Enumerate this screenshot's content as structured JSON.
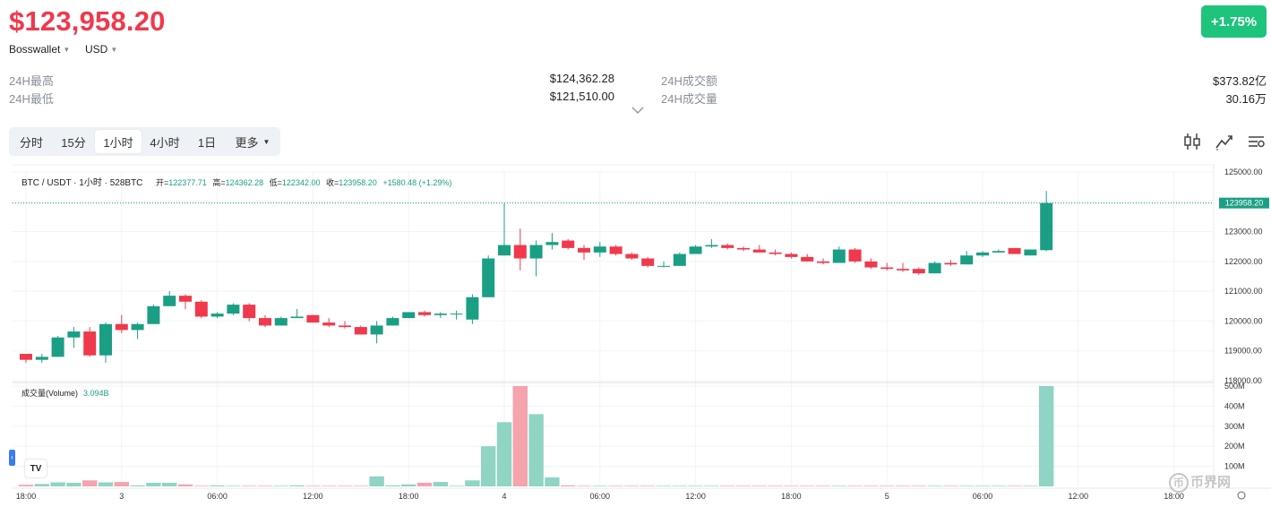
{
  "header": {
    "price": "$123,958.20",
    "change_badge": "+1.75%",
    "wallet_select": "Bosswallet",
    "currency_select": "USD"
  },
  "stats": {
    "high_label": "24H最高",
    "high_value": "$124,362.28",
    "low_label": "24H最低",
    "low_value": "$121,510.00",
    "turnover_label": "24H成交额",
    "turnover_value": "$373.82亿",
    "volume_label": "24H成交量",
    "volume_value": "30.16万"
  },
  "timeframes": [
    "分时",
    "15分",
    "1小时",
    "4小时",
    "1日",
    "更多"
  ],
  "active_timeframe": "1小时",
  "tools": [
    "candlestick-settings-icon",
    "indicator-icon",
    "chart-settings-icon"
  ],
  "colors": {
    "up": "#1a9f84",
    "down": "#f0394c",
    "up_vol": "#8fd4c5",
    "down_vol": "#f5a3ad",
    "accent": "#3a7cf0",
    "badge": "#1ec37c"
  },
  "legend": {
    "symbol": "BTC / USDT · 1小时 · 528BTC",
    "open_label": "开=",
    "open": "122377.71",
    "high_label": "高=",
    "high": "124362.28",
    "low_label": "低=",
    "low": "122342.00",
    "close_label": "收=",
    "close": "123958.20",
    "change": "+1580.48 (+1.29%)",
    "volume_label": "成交量(Volume)",
    "volume_value": "3.094B"
  },
  "watermark": "币界网",
  "chart_data": {
    "type": "candlestick",
    "y_ticks": [
      "125000.00",
      "124000.00",
      "123000.00",
      "122000.00",
      "121000.00",
      "120000.00",
      "119000.00",
      "118000.00"
    ],
    "ylim": [
      118000,
      125000
    ],
    "current_price_label": "123958.20",
    "volume_ticks": [
      "500M",
      "400M",
      "300M",
      "200M",
      "100M"
    ],
    "volume_ylim": [
      0,
      500
    ],
    "x_ticks": [
      {
        "i": 0,
        "label": "18:00"
      },
      {
        "i": 6,
        "label": "3"
      },
      {
        "i": 12,
        "label": "06:00"
      },
      {
        "i": 18,
        "label": "12:00"
      },
      {
        "i": 24,
        "label": "18:00"
      },
      {
        "i": 30,
        "label": "4"
      },
      {
        "i": 36,
        "label": "06:00"
      },
      {
        "i": 42,
        "label": "12:00"
      },
      {
        "i": 48,
        "label": "18:00"
      },
      {
        "i": 54,
        "label": "5"
      },
      {
        "i": 60,
        "label": "06:00"
      },
      {
        "i": 66,
        "label": "12:00"
      },
      {
        "i": 72,
        "label": "18:00"
      }
    ],
    "candles": [
      {
        "o": 118900,
        "h": 118900,
        "l": 118600,
        "c": 118700
      },
      {
        "o": 118700,
        "h": 118900,
        "l": 118600,
        "c": 118800
      },
      {
        "o": 118800,
        "h": 119500,
        "l": 118800,
        "c": 119450
      },
      {
        "o": 119450,
        "h": 119800,
        "l": 119100,
        "c": 119650
      },
      {
        "o": 119650,
        "h": 119800,
        "l": 118800,
        "c": 118850
      },
      {
        "o": 118850,
        "h": 119950,
        "l": 118600,
        "c": 119900
      },
      {
        "o": 119900,
        "h": 120200,
        "l": 119600,
        "c": 119700
      },
      {
        "o": 119700,
        "h": 119950,
        "l": 119400,
        "c": 119900
      },
      {
        "o": 119900,
        "h": 120550,
        "l": 119900,
        "c": 120500
      },
      {
        "o": 120500,
        "h": 121000,
        "l": 120500,
        "c": 120850
      },
      {
        "o": 120850,
        "h": 120900,
        "l": 120400,
        "c": 120650
      },
      {
        "o": 120650,
        "h": 120700,
        "l": 120100,
        "c": 120150
      },
      {
        "o": 120150,
        "h": 120300,
        "l": 120100,
        "c": 120250
      },
      {
        "o": 120250,
        "h": 120600,
        "l": 120200,
        "c": 120550
      },
      {
        "o": 120550,
        "h": 120600,
        "l": 120000,
        "c": 120100
      },
      {
        "o": 120100,
        "h": 120200,
        "l": 119800,
        "c": 119850
      },
      {
        "o": 119850,
        "h": 120150,
        "l": 119850,
        "c": 120100
      },
      {
        "o": 120100,
        "h": 120400,
        "l": 120100,
        "c": 120150
      },
      {
        "o": 120200,
        "h": 120200,
        "l": 119950,
        "c": 119950
      },
      {
        "o": 119950,
        "h": 120100,
        "l": 119800,
        "c": 119850
      },
      {
        "o": 119850,
        "h": 120000,
        "l": 119750,
        "c": 119800
      },
      {
        "o": 119800,
        "h": 119850,
        "l": 119550,
        "c": 119550
      },
      {
        "o": 119550,
        "h": 120000,
        "l": 119250,
        "c": 119850
      },
      {
        "o": 119850,
        "h": 120150,
        "l": 119850,
        "c": 120100
      },
      {
        "o": 120100,
        "h": 120300,
        "l": 120100,
        "c": 120300
      },
      {
        "o": 120300,
        "h": 120350,
        "l": 120150,
        "c": 120200
      },
      {
        "o": 120200,
        "h": 120300,
        "l": 120100,
        "c": 120250
      },
      {
        "o": 120250,
        "h": 120350,
        "l": 120050,
        "c": 120250
      },
      {
        "o": 120050,
        "h": 120900,
        "l": 119900,
        "c": 120800
      },
      {
        "o": 120800,
        "h": 122200,
        "l": 120800,
        "c": 122100
      },
      {
        "o": 122200,
        "h": 123950,
        "l": 122200,
        "c": 122550
      },
      {
        "o": 122550,
        "h": 123100,
        "l": 121700,
        "c": 122100
      },
      {
        "o": 122100,
        "h": 122700,
        "l": 121500,
        "c": 122550
      },
      {
        "o": 122550,
        "h": 122950,
        "l": 122400,
        "c": 122650
      },
      {
        "o": 122700,
        "h": 122750,
        "l": 122400,
        "c": 122450
      },
      {
        "o": 122450,
        "h": 122550,
        "l": 122050,
        "c": 122300
      },
      {
        "o": 122300,
        "h": 122650,
        "l": 122150,
        "c": 122500
      },
      {
        "o": 122500,
        "h": 122550,
        "l": 122200,
        "c": 122250
      },
      {
        "o": 122250,
        "h": 122300,
        "l": 122050,
        "c": 122100
      },
      {
        "o": 122100,
        "h": 122150,
        "l": 121800,
        "c": 121850
      },
      {
        "o": 121850,
        "h": 122000,
        "l": 121800,
        "c": 121850
      },
      {
        "o": 121850,
        "h": 122300,
        "l": 121850,
        "c": 122250
      },
      {
        "o": 122250,
        "h": 122550,
        "l": 122250,
        "c": 122500
      },
      {
        "o": 122500,
        "h": 122750,
        "l": 122450,
        "c": 122550
      },
      {
        "o": 122550,
        "h": 122600,
        "l": 122400,
        "c": 122450
      },
      {
        "o": 122450,
        "h": 122500,
        "l": 122350,
        "c": 122400
      },
      {
        "o": 122400,
        "h": 122550,
        "l": 122300,
        "c": 122300
      },
      {
        "o": 122300,
        "h": 122400,
        "l": 122200,
        "c": 122250
      },
      {
        "o": 122250,
        "h": 122300,
        "l": 122100,
        "c": 122150
      },
      {
        "o": 122150,
        "h": 122250,
        "l": 122000,
        "c": 122000
      },
      {
        "o": 122000,
        "h": 122100,
        "l": 121900,
        "c": 121950
      },
      {
        "o": 121950,
        "h": 122500,
        "l": 121950,
        "c": 122400
      },
      {
        "o": 122400,
        "h": 122450,
        "l": 121950,
        "c": 122000
      },
      {
        "o": 122000,
        "h": 122100,
        "l": 121750,
        "c": 121800
      },
      {
        "o": 121800,
        "h": 121950,
        "l": 121700,
        "c": 121750
      },
      {
        "o": 121750,
        "h": 121950,
        "l": 121650,
        "c": 121700
      },
      {
        "o": 121750,
        "h": 121800,
        "l": 121550,
        "c": 121600
      },
      {
        "o": 121600,
        "h": 122000,
        "l": 121600,
        "c": 121950
      },
      {
        "o": 121950,
        "h": 122050,
        "l": 121850,
        "c": 121900
      },
      {
        "o": 121900,
        "h": 122350,
        "l": 121900,
        "c": 122200
      },
      {
        "o": 122200,
        "h": 122350,
        "l": 122150,
        "c": 122300
      },
      {
        "o": 122300,
        "h": 122400,
        "l": 122300,
        "c": 122350
      },
      {
        "o": 122450,
        "h": 122450,
        "l": 122250,
        "c": 122250
      },
      {
        "o": 122200,
        "h": 122400,
        "l": 122200,
        "c": 122400
      },
      {
        "o": 122377.71,
        "h": 124362.28,
        "l": 122342,
        "c": 123958.2
      }
    ],
    "volumes": [
      8,
      12,
      20,
      18,
      30,
      20,
      22,
      5,
      18,
      18,
      10,
      3,
      5,
      3,
      3,
      3,
      3,
      5,
      3,
      3,
      3,
      3,
      50,
      5,
      10,
      18,
      22,
      3,
      30,
      200,
      320,
      500,
      360,
      45,
      5,
      3,
      3,
      3,
      3,
      3,
      3,
      3,
      3,
      3,
      3,
      3,
      3,
      3,
      3,
      3,
      3,
      3,
      3,
      3,
      3,
      3,
      3,
      3,
      3,
      3,
      3,
      3,
      3,
      3,
      500
    ]
  }
}
